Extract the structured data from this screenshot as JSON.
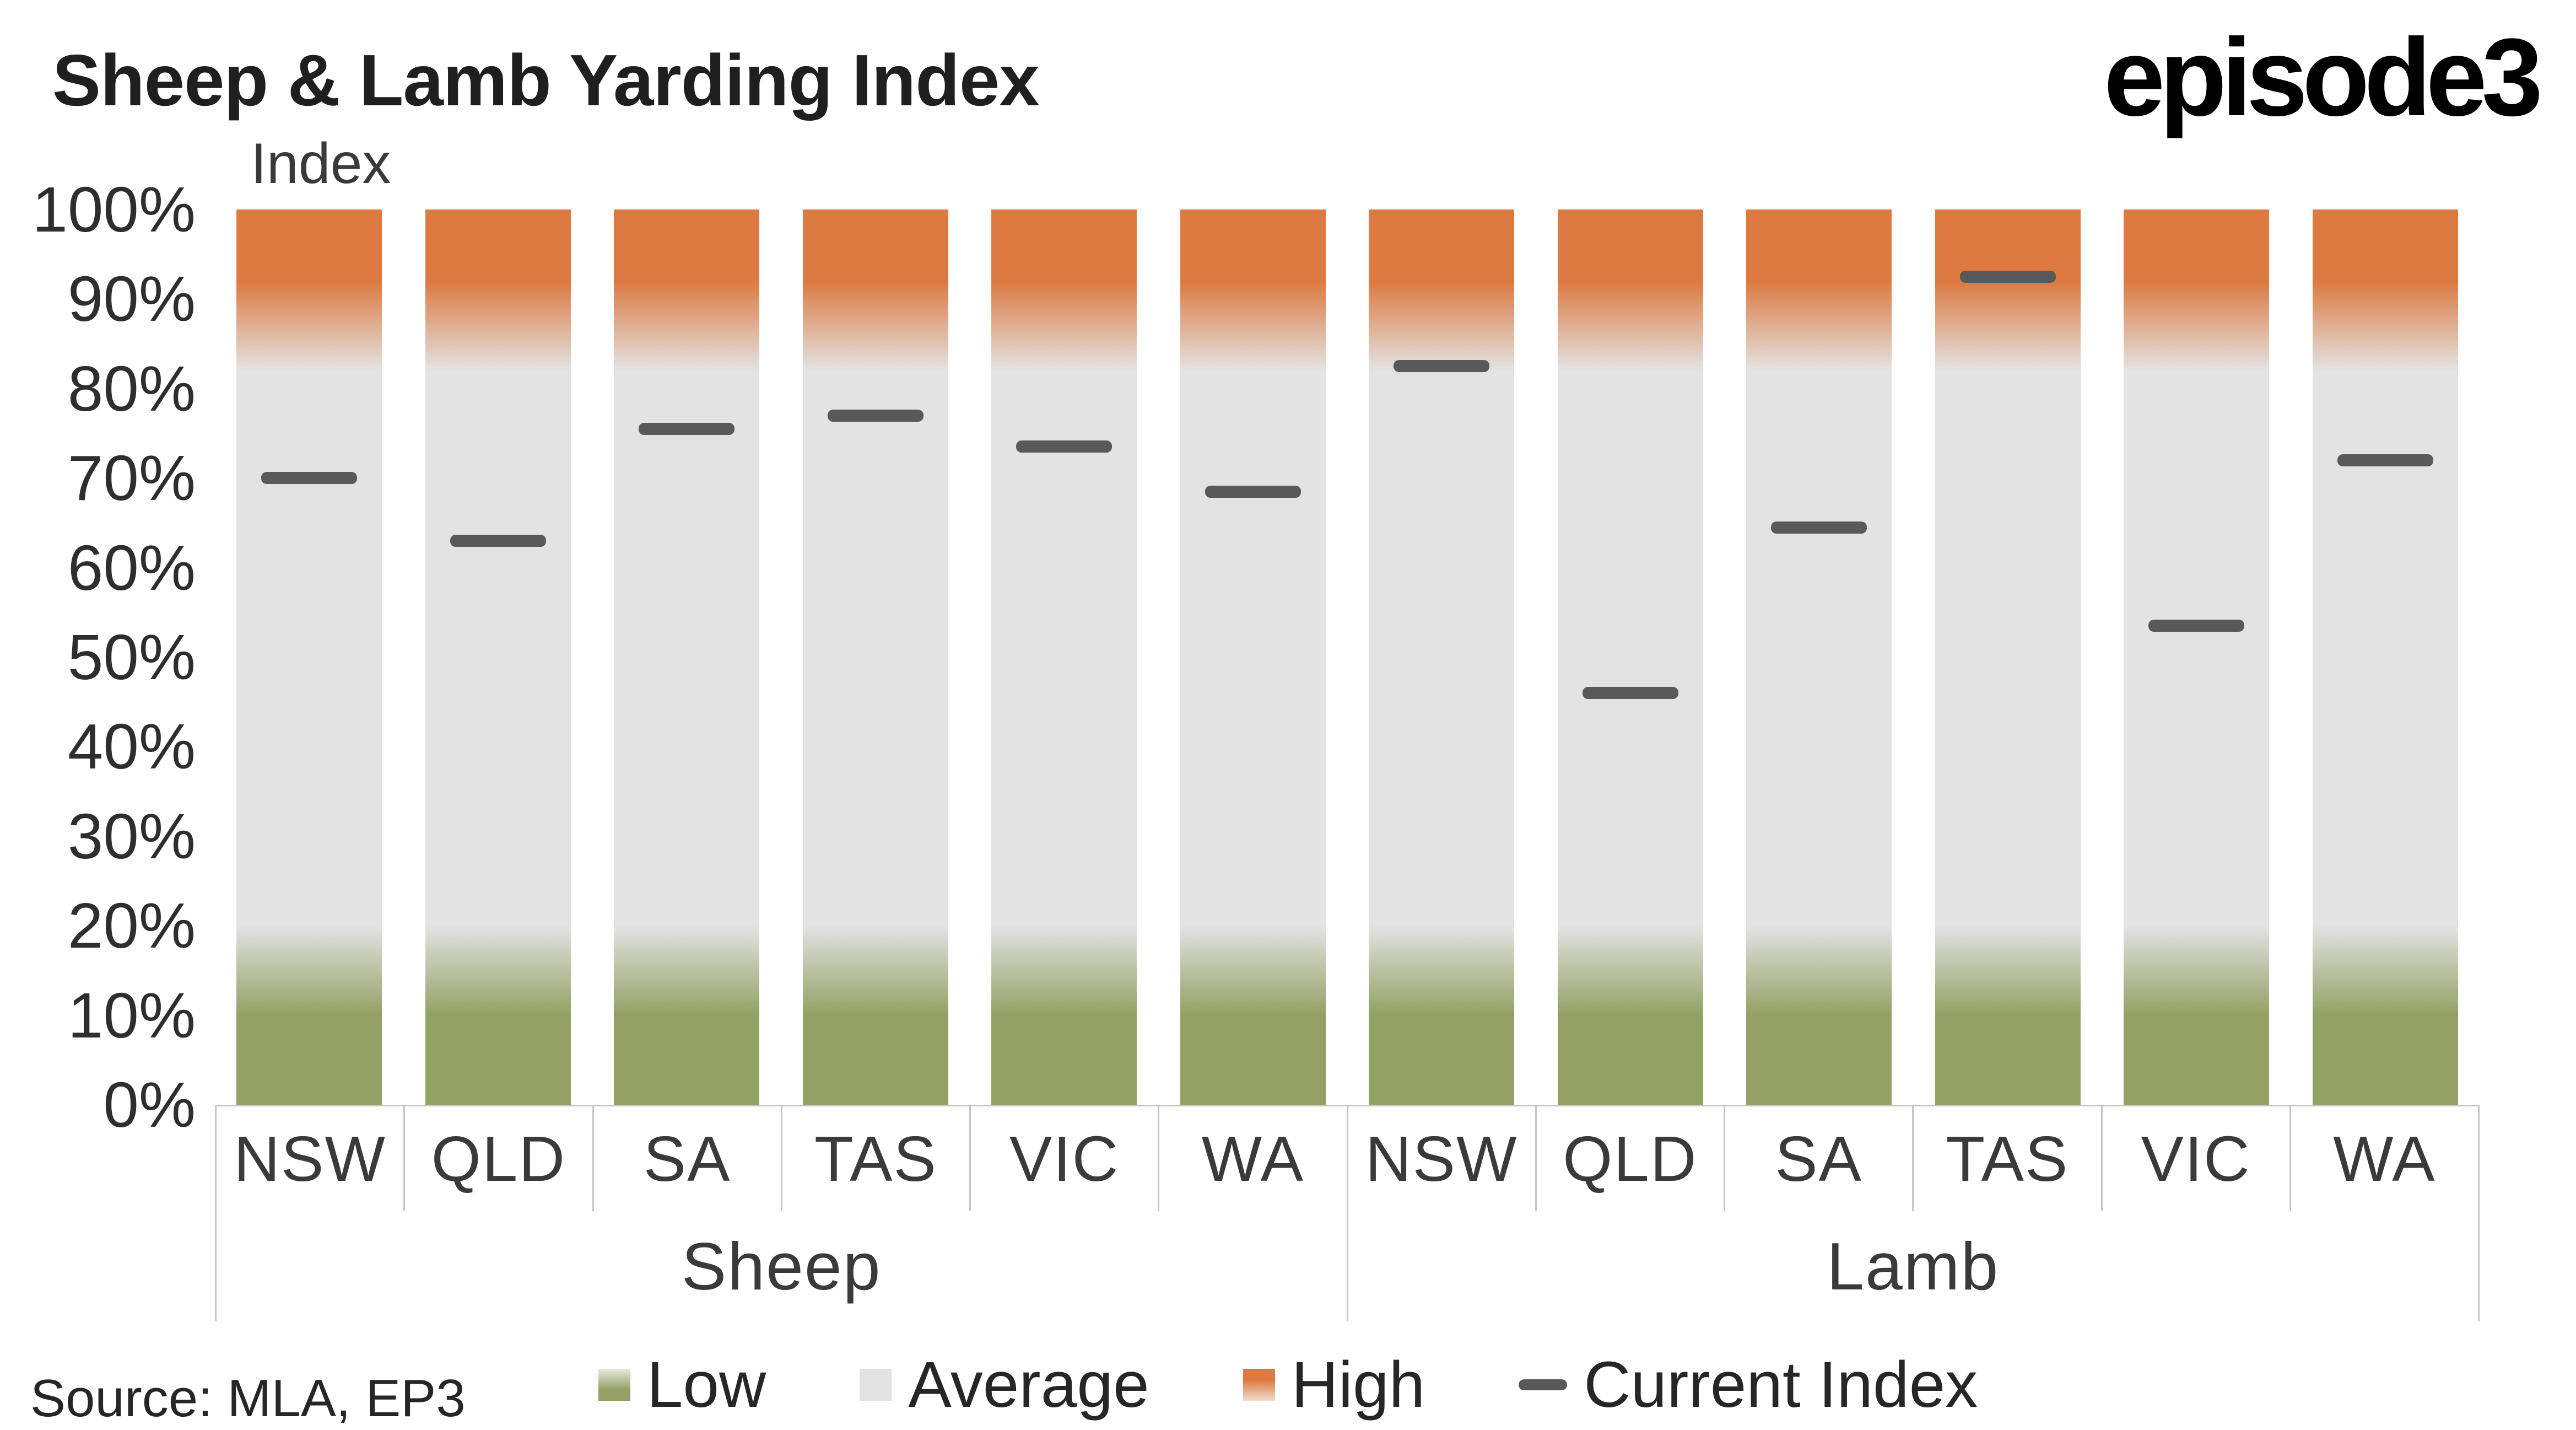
{
  "header": {
    "title": "Sheep & Lamb Yarding Index",
    "logo": "episode3"
  },
  "footer": {
    "source": "Source: MLA, EP3"
  },
  "chart_data": {
    "type": "bar",
    "title": "Sheep & Lamb Yarding Index",
    "axis_label": "Index",
    "ylim": [
      0,
      100
    ],
    "y_ticks": [
      "0%",
      "10%",
      "20%",
      "30%",
      "40%",
      "50%",
      "60%",
      "70%",
      "80%",
      "90%",
      "100%"
    ],
    "categories": [
      "NSW",
      "QLD",
      "SA",
      "TAS",
      "VIC",
      "WA",
      "NSW",
      "QLD",
      "SA",
      "TAS",
      "VIC",
      "WA"
    ],
    "groups": [
      {
        "label": "Sheep",
        "span": 6
      },
      {
        "label": "Lamb",
        "span": 6
      }
    ],
    "series": [
      {
        "name": "Current Index",
        "values": [
          70,
          63,
          75.5,
          77,
          73.5,
          68.5,
          82.5,
          46,
          64.5,
          92.5,
          53.5,
          72
        ]
      }
    ],
    "bands": {
      "low_solid_top": 10,
      "low_fade_top": 20,
      "high_fade_bottom": 82,
      "high_solid_bottom": 92
    },
    "legend": [
      {
        "label": "Low",
        "type": "gradient-green"
      },
      {
        "label": "Average",
        "type": "solid-gray"
      },
      {
        "label": "High",
        "type": "gradient-orange"
      },
      {
        "label": "Current Index",
        "type": "dash"
      }
    ],
    "colors": {
      "low": "#93A164",
      "average": "#E3E3E3",
      "high": "#DC7A41",
      "marker": "#595959",
      "axis_text": "#3A3A3A",
      "axis_line": "#C6C6C6",
      "title_text": "#1F1F1F"
    },
    "grid": "off",
    "legend_position": "bottom-center"
  }
}
